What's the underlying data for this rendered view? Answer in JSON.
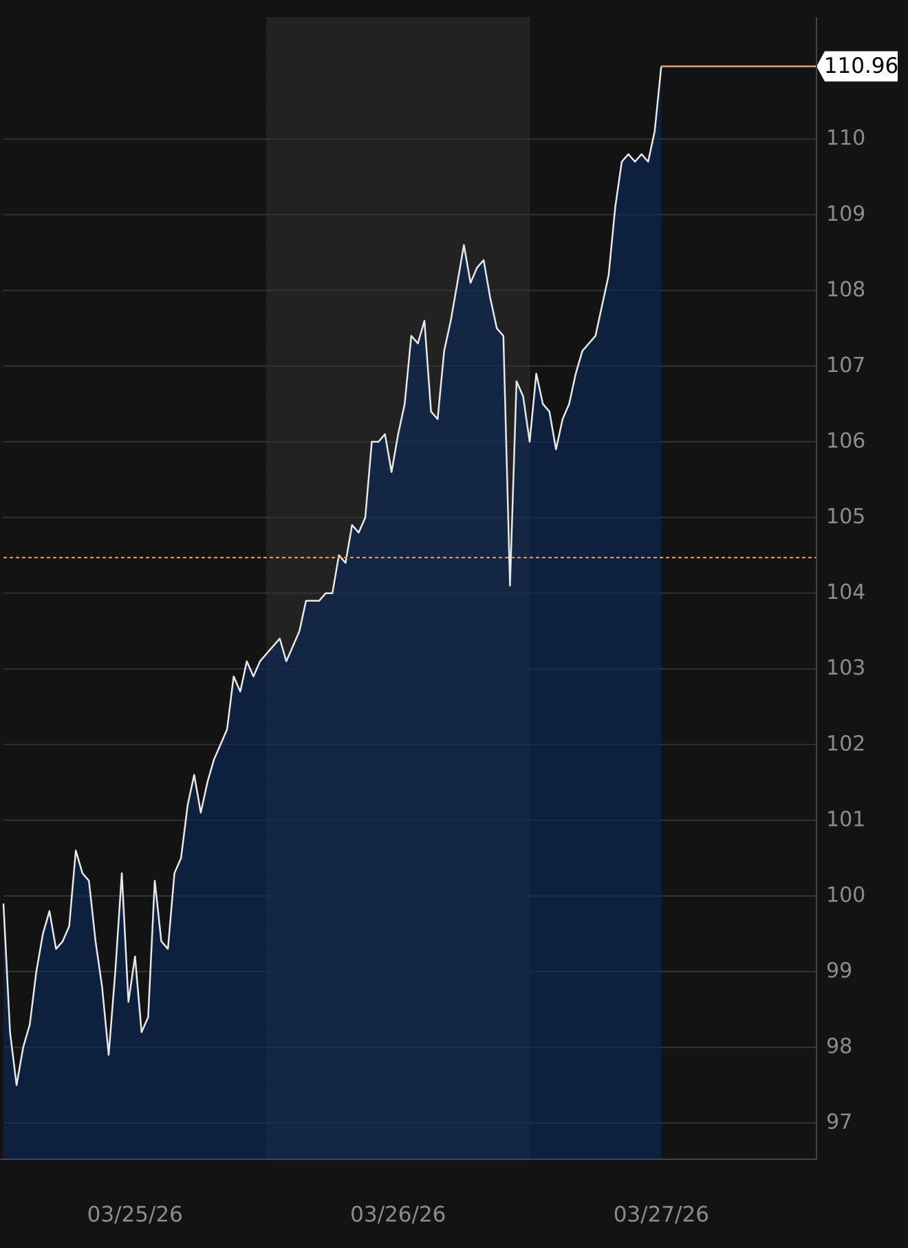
{
  "chart_data": {
    "type": "line",
    "x": [
      0,
      0.025,
      0.05,
      0.075,
      0.1,
      0.125,
      0.15,
      0.175,
      0.2,
      0.225,
      0.25,
      0.275,
      0.3,
      0.325,
      0.35,
      0.375,
      0.4,
      0.425,
      0.45,
      0.475,
      0.5,
      0.525,
      0.55,
      0.575,
      0.6,
      0.625,
      0.65,
      0.675,
      0.7,
      0.725,
      0.75,
      0.775,
      0.8,
      0.825,
      0.85,
      0.875,
      0.9,
      0.925,
      0.95,
      0.975,
      1,
      1.025,
      1.05,
      1.075,
      1.1,
      1.125,
      1.15,
      1.175,
      1.2,
      1.225,
      1.25,
      1.275,
      1.3,
      1.325,
      1.35,
      1.375,
      1.4,
      1.425,
      1.45,
      1.475,
      1.5,
      1.525,
      1.55,
      1.575,
      1.6,
      1.625,
      1.65,
      1.675,
      1.7,
      1.725,
      1.75,
      1.775,
      1.8,
      1.825,
      1.85,
      1.875,
      1.9,
      1.925,
      1.95,
      1.975,
      2,
      2.025,
      2.05,
      2.075,
      2.1,
      2.125,
      2.15,
      2.175,
      2.2,
      2.225,
      2.25,
      2.275,
      2.3,
      2.325,
      2.35,
      2.375,
      2.4,
      2.425,
      2.45,
      2.475,
      2.5
    ],
    "values": [
      99.9,
      98.2,
      97.5,
      98.0,
      98.3,
      99.0,
      99.5,
      99.8,
      99.3,
      99.4,
      99.6,
      100.6,
      100.3,
      100.2,
      99.4,
      98.8,
      97.9,
      99.0,
      100.3,
      98.6,
      99.2,
      98.2,
      98.4,
      100.2,
      99.4,
      99.3,
      100.3,
      100.5,
      101.2,
      101.6,
      101.1,
      101.5,
      101.8,
      102.0,
      102.2,
      102.9,
      102.7,
      103.1,
      102.9,
      103.1,
      103.2,
      103.3,
      103.4,
      103.1,
      103.3,
      103.5,
      103.9,
      103.9,
      103.9,
      104.0,
      104.0,
      104.5,
      104.4,
      104.9,
      104.8,
      105.0,
      106.0,
      106.0,
      106.1,
      105.6,
      106.1,
      106.5,
      107.4,
      107.3,
      107.6,
      106.4,
      106.3,
      107.2,
      107.6,
      108.1,
      108.6,
      108.1,
      108.3,
      108.4,
      107.9,
      107.5,
      107.4,
      104.1,
      106.8,
      106.6,
      106.0,
      106.9,
      106.5,
      106.4,
      105.9,
      106.3,
      106.5,
      106.9,
      107.2,
      107.3,
      107.4,
      107.8,
      108.2,
      109.1,
      109.7,
      109.8,
      109.7,
      109.8,
      109.7,
      110.1,
      110.96
    ],
    "line_color": "#e8e8e8",
    "fill_color": "#0a2a5c",
    "last_value": 110.96,
    "last_value_color": "#f0a060",
    "reference_line": 104.47,
    "reference_color": "#f0a060",
    "shaded_range": [
      1,
      2
    ],
    "xlim": [
      0,
      3.09
    ],
    "xticks": [
      {
        "value": 0.5,
        "label": "03/25/26"
      },
      {
        "value": 1.5,
        "label": "03/26/26"
      },
      {
        "value": 2.5,
        "label": "03/27/26"
      }
    ],
    "ylim": [
      96.52,
      111.61
    ],
    "yticks": [
      97,
      98,
      99,
      100,
      101,
      102,
      103,
      104,
      105,
      106,
      107,
      108,
      109,
      110
    ],
    "grid": true
  }
}
